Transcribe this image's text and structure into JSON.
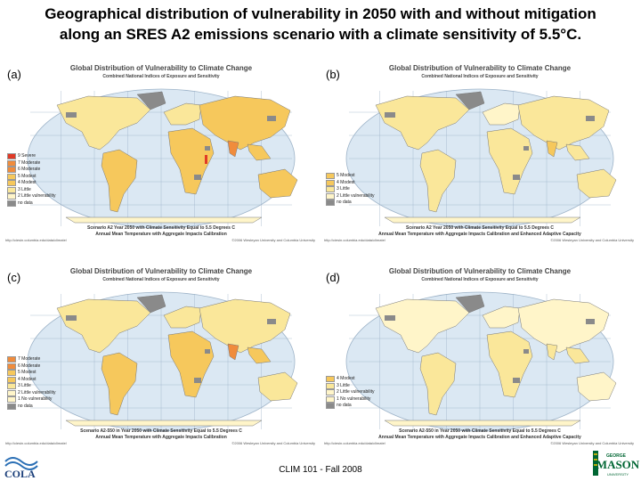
{
  "slide": {
    "title_line1": "Geographical distribution of vulnerability in 2050 with and without mitigation",
    "title_line2": "along an SRES A2 emissions scenario with a climate sensitivity of 5.5°C.",
    "footer": "CLIM 101 - Fall 2008",
    "logo_left_text": "COLA",
    "logo_right_text_top": "GEORGE",
    "logo_right_text_main": "MASON",
    "logo_right_text_bottom": "UNIVERSITY"
  },
  "colors": {
    "ocean": "#dbe8f3",
    "grid": "#9db3c8",
    "severe": "#e03a26",
    "moderate": "#f08c3c",
    "modest": "#f6c85c",
    "little": "#fae79a",
    "none": "#fff5c9",
    "nodata": "#8a8a8a"
  },
  "panels": [
    {
      "label": "(a)",
      "map_title": "Global Distribution of Vulnerability to Climate Change",
      "map_subtitle": "Combined National Indices of Exposure and Sensitivity",
      "legend": [
        {
          "text": "9  Severe",
          "color": "severe"
        },
        {
          "text": "7  Moderate",
          "color": "moderate"
        },
        {
          "text": "6  Moderate",
          "color": "moderate"
        },
        {
          "text": "5  Modest",
          "color": "modest"
        },
        {
          "text": "4  Modest",
          "color": "modest"
        },
        {
          "text": "3  Little",
          "color": "little"
        },
        {
          "text": "2  Little vulnerability",
          "color": "none"
        },
        {
          "text": "no data",
          "color": "nodata"
        }
      ],
      "caption1": "Scenario A2 Year 2050 with Climate Sensitivity Equal to 5.5 Degrees C",
      "caption2": "Annual Mean Temperature with Aggregate Impacts Calibration",
      "source_left": "http://ciesin.columbia.edu/data/climate/",
      "source_right": "©2006 Wesleyan University and Columbia University"
    },
    {
      "label": "(b)",
      "map_title": "Global Distribution of Vulnerability to Climate Change",
      "map_subtitle": "Combined National Indices of Exposure and Sensitivity",
      "legend": [
        {
          "text": "5  Modest",
          "color": "modest"
        },
        {
          "text": "4  Modest",
          "color": "modest"
        },
        {
          "text": "3  Little",
          "color": "little"
        },
        {
          "text": "2  Little vulnerability",
          "color": "none"
        },
        {
          "text": "no data",
          "color": "nodata"
        }
      ],
      "caption1": "Scenario A2 Year 2050 with Climate Sensitivity Equal to 5.5 Degrees C",
      "caption2": "Annual Mean Temperature with Aggregate Impacts Calibration and Enhanced Adaptive Capacity",
      "source_left": "http://ciesin.columbia.edu/data/climate/",
      "source_right": "©2006 Wesleyan University and Columbia University"
    },
    {
      "label": "(c)",
      "map_title": "Global Distribution of Vulnerability to Climate Change",
      "map_subtitle": "Combined National Indices of Exposure and Sensitivity",
      "legend": [
        {
          "text": "7  Moderate",
          "color": "moderate"
        },
        {
          "text": "6  Moderate",
          "color": "moderate"
        },
        {
          "text": "5  Modest",
          "color": "modest"
        },
        {
          "text": "4  Modest",
          "color": "modest"
        },
        {
          "text": "3  Little",
          "color": "little"
        },
        {
          "text": "2  Little vulnerability",
          "color": "none"
        },
        {
          "text": "1  No vulnerability",
          "color": "none"
        },
        {
          "text": "no data",
          "color": "nodata"
        }
      ],
      "caption1": "Scenario A2-550 in Year 2050 with Climate Sensitivity Equal to 5.5 Degrees C",
      "caption2": "Annual Mean Temperature with Aggregate Impacts Calibration",
      "source_left": "http://ciesin.columbia.edu/data/climate/",
      "source_right": "©2006 Wesleyan University and Columbia University"
    },
    {
      "label": "(d)",
      "map_title": "Global Distribution of Vulnerability to Climate Change",
      "map_subtitle": "Combined National Indices of Exposure and Sensitivity",
      "legend": [
        {
          "text": "4  Modest",
          "color": "modest"
        },
        {
          "text": "3  Little",
          "color": "little"
        },
        {
          "text": "2  Little vulnerability",
          "color": "none"
        },
        {
          "text": "1  No vulnerability",
          "color": "none"
        },
        {
          "text": "no data",
          "color": "nodata"
        }
      ],
      "caption1": "Scenario A2-550 in Year 2050 with Climate Sensitivity Equal to 5.5 Degrees C",
      "caption2": "Annual Mean Temperature with Aggregate Impacts Calibration and Enhanced Adaptive Capacity",
      "source_left": "http://ciesin.columbia.edu/data/climate/",
      "source_right": "©2006 Wesleyan University and Columbia University"
    }
  ]
}
